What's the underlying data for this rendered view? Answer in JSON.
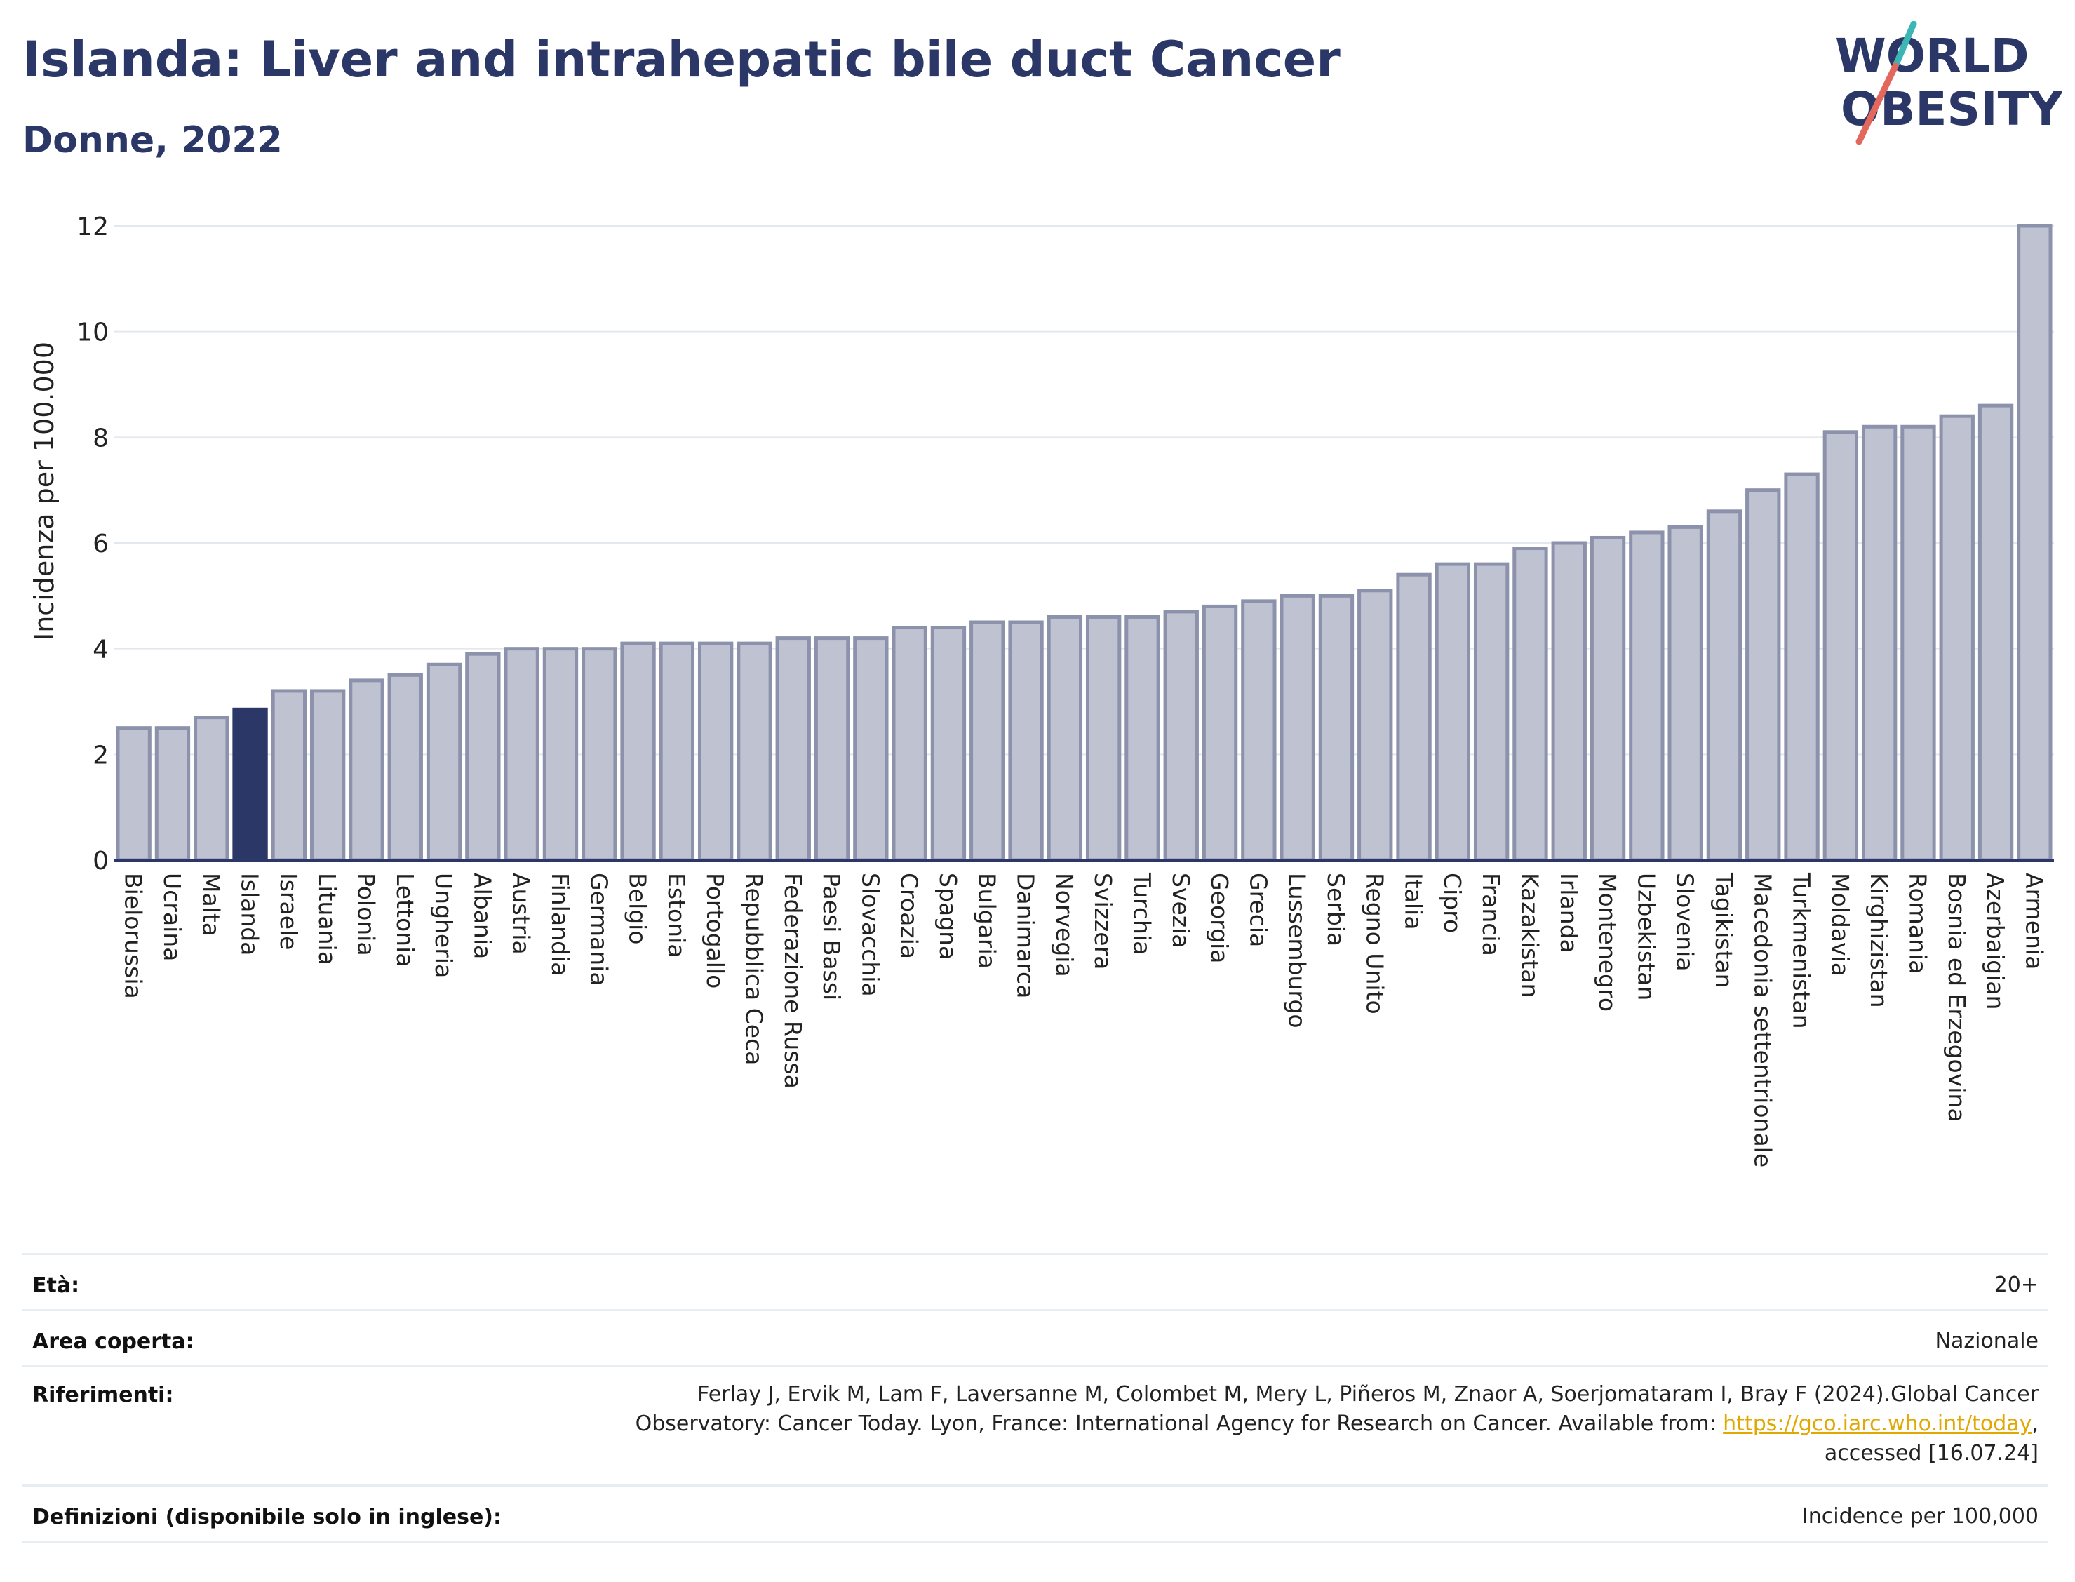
{
  "header": {
    "title": "Islanda: Liver and intrahepatic bile duct Cancer",
    "subtitle": "Donne, 2022"
  },
  "logo": {
    "line1": "WORLD",
    "line2": "OBESITY"
  },
  "colors": {
    "bar": "#bec2d1",
    "bar_edge": "#8c92ab",
    "highlight": "#2b3766",
    "text": "#2b3766",
    "accent_red": "#e2685e",
    "accent_teal": "#3cb6b4",
    "link": "#e0a800"
  },
  "chart_data": {
    "type": "bar",
    "title": "Islanda: Liver and intrahepatic bile duct Cancer",
    "subtitle": "Donne, 2022",
    "ylabel": "Incidenza per 100.000",
    "xlabel": "",
    "ylim": [
      0,
      12
    ],
    "yticks": [
      0,
      2,
      4,
      6,
      8,
      10,
      12
    ],
    "grid": true,
    "highlight": "Islanda",
    "categories": [
      "Bielorussia",
      "Ucraina",
      "Malta",
      "Islanda",
      "Israele",
      "Lituania",
      "Polonia",
      "Lettonia",
      "Ungheria",
      "Albania",
      "Austria",
      "Finlandia",
      "Germania",
      "Belgio",
      "Estonia",
      "Portogallo",
      "Repubblica Ceca",
      "Federazione Russa",
      "Paesi Bassi",
      "Slovacchia",
      "Croazia",
      "Spagna",
      "Bulgaria",
      "Danimarca",
      "Norvegia",
      "Svizzera",
      "Turchia",
      "Svezia",
      "Georgia",
      "Grecia",
      "Lussemburgo",
      "Serbia",
      "Regno Unito",
      "Italia",
      "Cipro",
      "Francia",
      "Kazakistan",
      "Irlanda",
      "Montenegro",
      "Uzbekistan",
      "Slovenia",
      "Tagikistan",
      "Macedonia settentrionale",
      "Turkmenistan",
      "Moldavia",
      "Kirghizistan",
      "Romania",
      "Bosnia ed Erzegovina",
      "Azerbaigian",
      "Armenia"
    ],
    "values": [
      2.5,
      2.5,
      2.7,
      2.85,
      3.2,
      3.2,
      3.4,
      3.5,
      3.7,
      3.9,
      4.0,
      4.0,
      4.0,
      4.1,
      4.1,
      4.1,
      4.1,
      4.2,
      4.2,
      4.2,
      4.4,
      4.4,
      4.5,
      4.5,
      4.6,
      4.6,
      4.6,
      4.7,
      4.8,
      4.9,
      5.0,
      5.0,
      5.1,
      5.4,
      5.6,
      5.6,
      5.9,
      6.0,
      6.1,
      6.2,
      6.3,
      6.6,
      7.0,
      7.3,
      8.1,
      8.2,
      8.2,
      8.4,
      8.6,
      12.0
    ]
  },
  "info": {
    "eta_label": "Età:",
    "eta_value": "20+",
    "area_label": "Area coperta:",
    "area_value": "Nazionale",
    "rif_label": "Riferimenti:",
    "rif_line1": "Ferlay J, Ervik M, Lam F, Laversanne M, Colombet M, Mery L, Piñeros M, Znaor A, Soerjomataram I, Bray F (2024).Global Cancer",
    "rif_line2_pre": "Observatory: Cancer Today. Lyon, France: International Agency for Research on Cancer. Available from: ",
    "rif_link": "https://gco.iarc.who.int/today",
    "rif_line2_post": ",",
    "rif_line3": "accessed [16.07.24]",
    "def_label": "Definizioni (disponibile solo in inglese):",
    "def_value": "Incidence per 100,000"
  }
}
